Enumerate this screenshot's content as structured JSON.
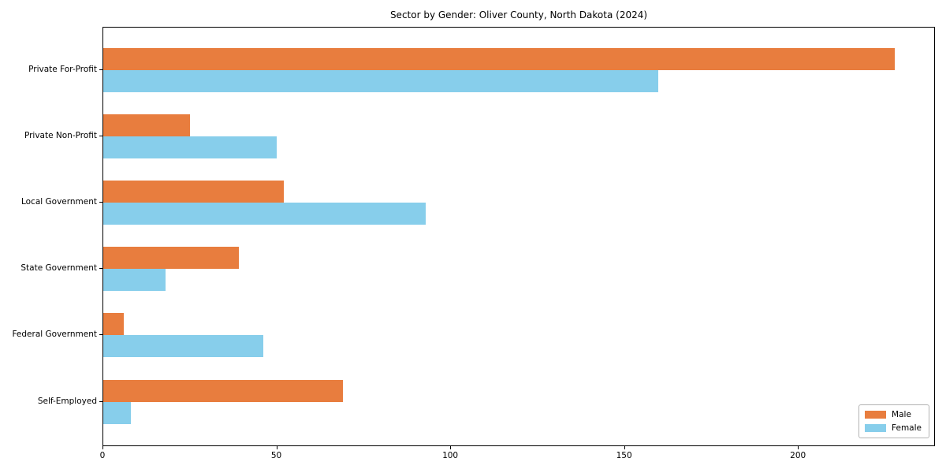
{
  "chart_data": {
    "type": "bar",
    "orientation": "horizontal",
    "title": "Sector by Gender: Oliver County, North Dakota (2024)",
    "categories": [
      "Private For-Profit",
      "Private Non-Profit",
      "Local Government",
      "State Government",
      "Federal Government",
      "Self-Employed"
    ],
    "series": [
      {
        "name": "Male",
        "color": "#e87d3e",
        "values": [
          228,
          25,
          52,
          39,
          6,
          69
        ]
      },
      {
        "name": "Female",
        "color": "#87ceeb",
        "values": [
          160,
          50,
          93,
          18,
          46,
          8
        ]
      }
    ],
    "xlim": [
      0,
      239.4
    ],
    "x_ticks": [
      0,
      50,
      100,
      150,
      200
    ],
    "xlabel": "",
    "ylabel": "",
    "grid": false,
    "legend_position": "lower right",
    "spine_color": "#000000",
    "background_color": "#ffffff"
  }
}
